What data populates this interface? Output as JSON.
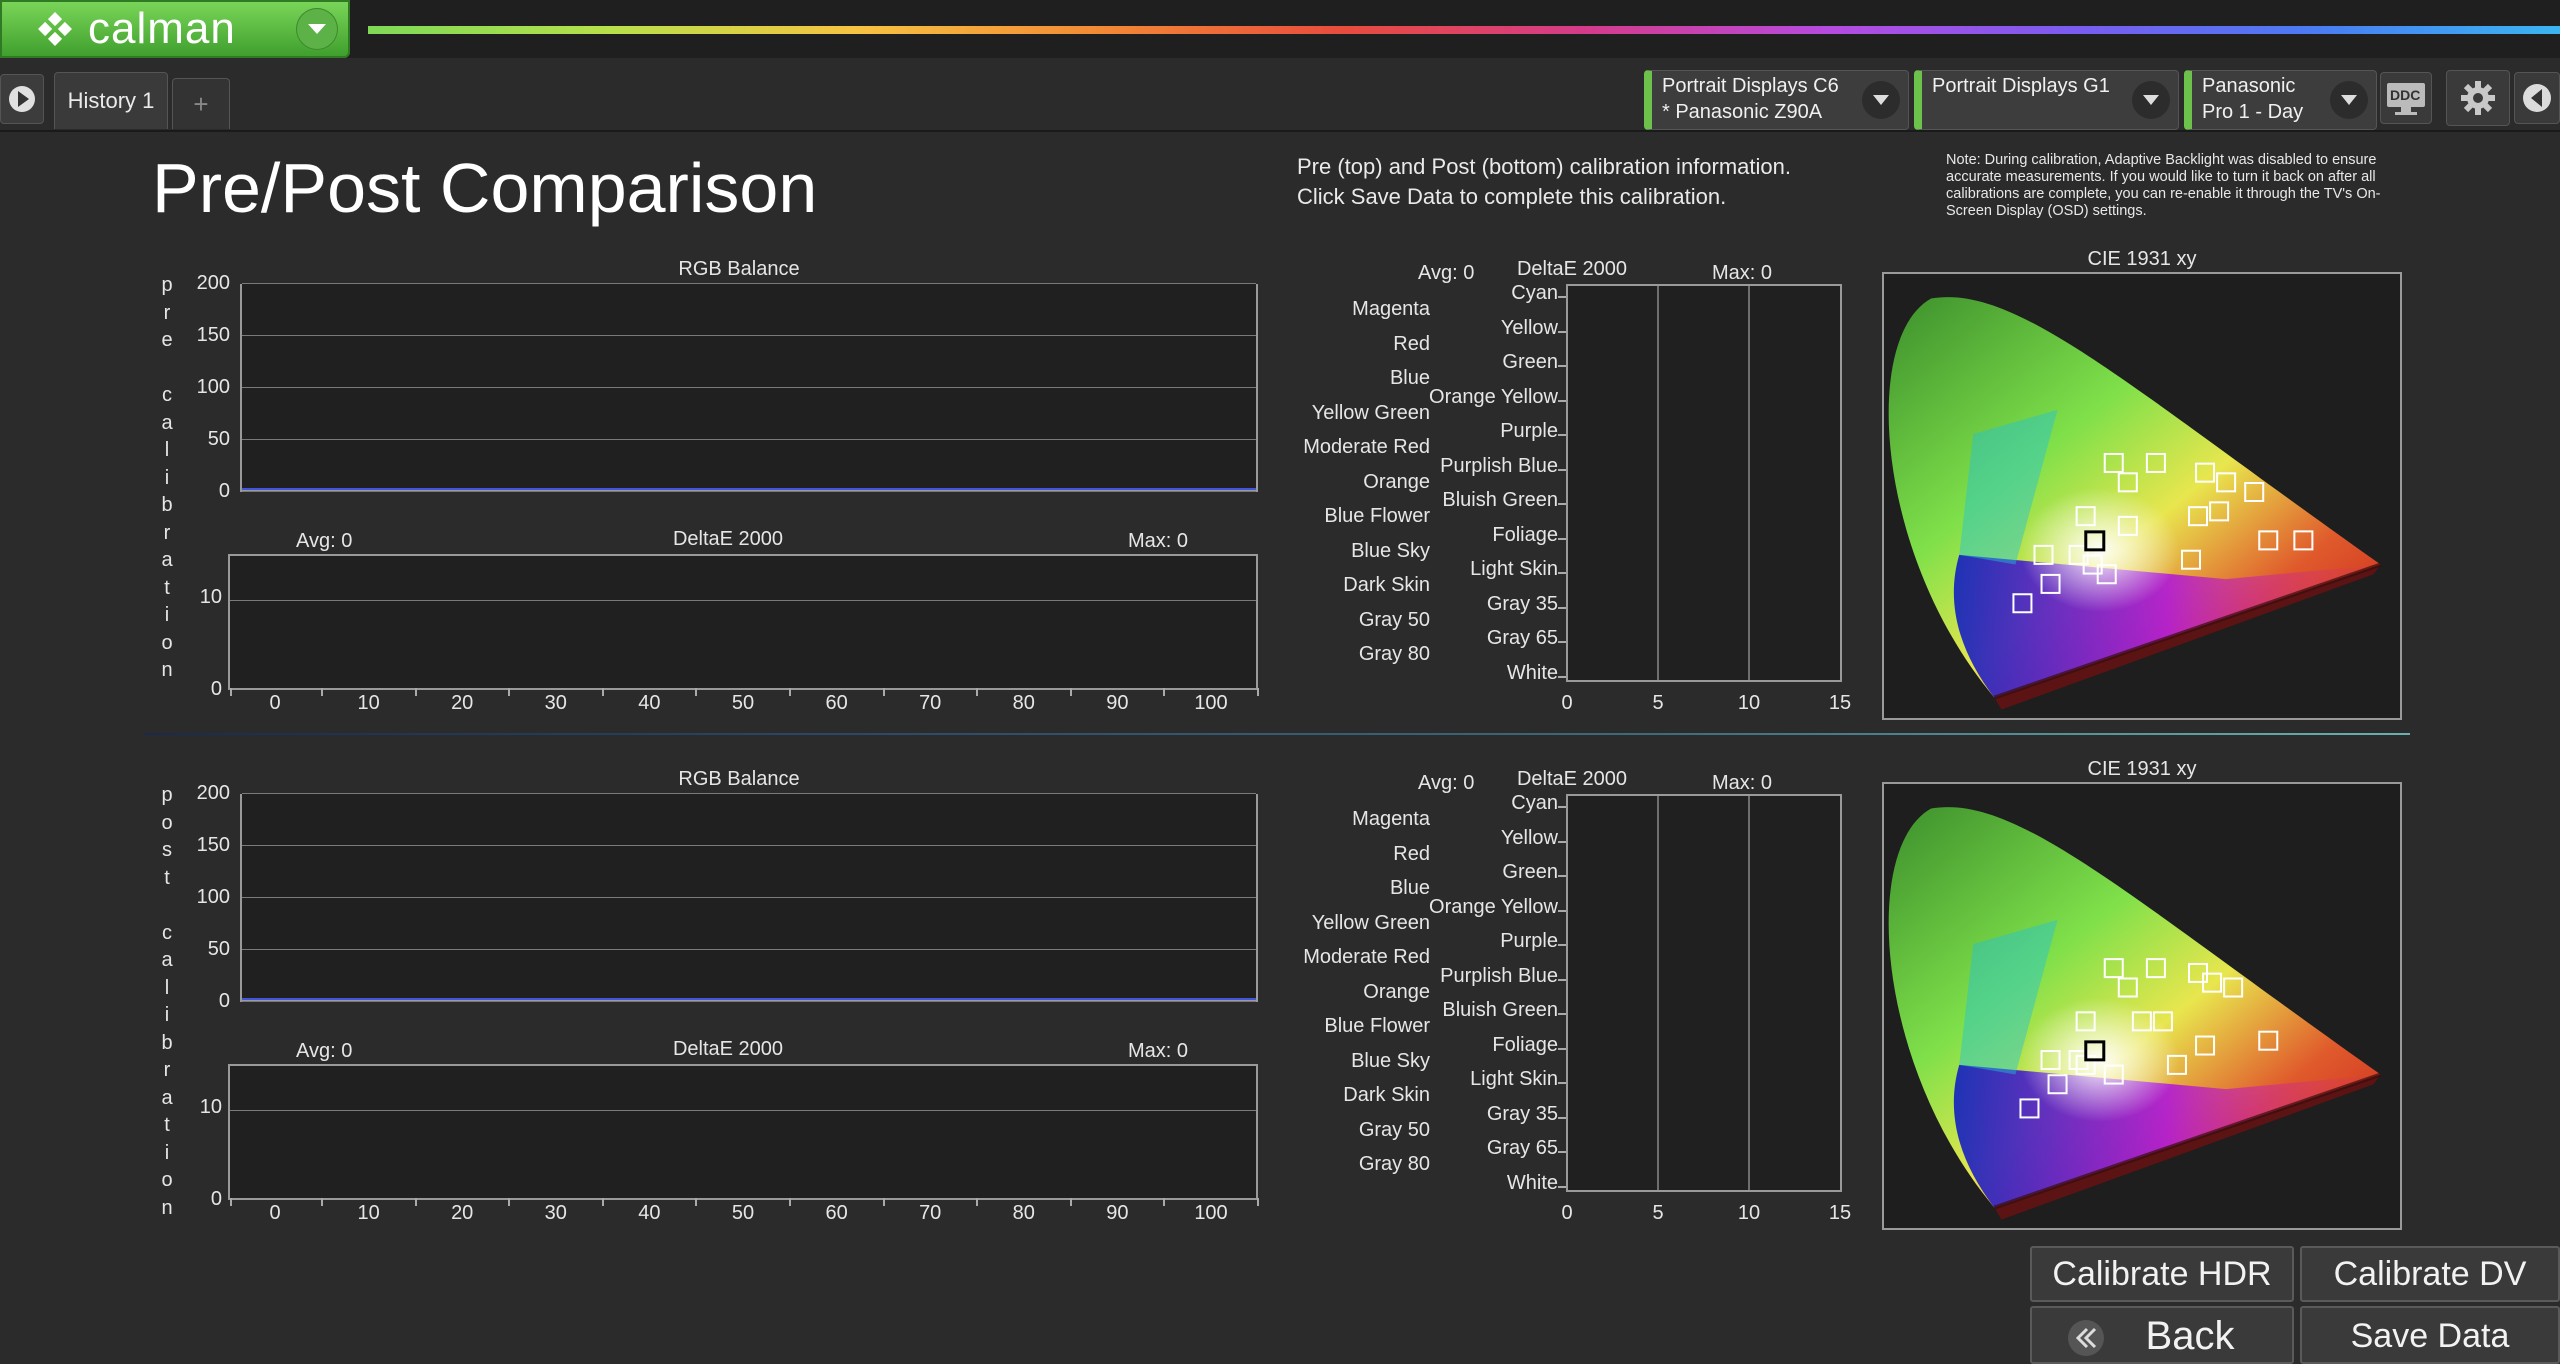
{
  "app": {
    "name": "calman"
  },
  "tabs": [
    {
      "label": "History 1"
    }
  ],
  "add_tab_label": "+",
  "devices": [
    {
      "line1": "Portrait Displays C6",
      "line2": "* Panasonic Z90A"
    },
    {
      "line1": "Portrait Displays G1",
      "line2": ""
    },
    {
      "line1": "Panasonic",
      "line2": "Pro 1 - Day"
    }
  ],
  "ddc_label": "DDC",
  "page": {
    "title": "Pre/Post Comparison",
    "info_line1": "Pre (top) and Post (bottom) calibration information.",
    "info_line2": "Click Save Data to complete this calibration.",
    "note": "Note: During calibration, Adaptive Backlight was disabled to ensure accurate measurements. If you would like to turn it back on after all calibrations are complete, you can re-enable it through the TV's On-Screen Display (OSD) settings."
  },
  "pre_label": "pre calibration",
  "post_label": "post calibration",
  "rgb_chart": {
    "title": "RGB Balance",
    "yticks": [
      "200",
      "150",
      "100",
      "50",
      "0"
    ]
  },
  "gray_delta_chart": {
    "title": "DeltaE 2000",
    "avg": "Avg: 0",
    "max": "Max: 0",
    "yticks": [
      "10",
      "0"
    ],
    "xticks": [
      "0",
      "10",
      "20",
      "30",
      "40",
      "50",
      "60",
      "70",
      "80",
      "90",
      "100"
    ]
  },
  "color_delta_chart": {
    "title": "DeltaE 2000",
    "avg": "Avg: 0",
    "max": "Max: 0",
    "xticks": [
      "0",
      "5",
      "10",
      "15"
    ],
    "left_labels": [
      "Magenta",
      "Red",
      "Blue",
      "Yellow Green",
      "Moderate Red",
      "Orange",
      "Blue Flower",
      "Blue Sky",
      "Dark Skin",
      "Gray 50",
      "Gray 80"
    ],
    "right_labels": [
      "Cyan",
      "Yellow",
      "Green",
      "Orange Yellow",
      "Purple",
      "Purplish Blue",
      "Bluish Green",
      "Foliage",
      "Light Skin",
      "Gray 35",
      "Gray 65",
      "White"
    ]
  },
  "cie_chart": {
    "title": "CIE 1931 xy"
  },
  "chart_data": [
    {
      "type": "line",
      "title": "RGB Balance",
      "panel": "pre",
      "ylim": [
        0,
        200
      ],
      "xlim": [
        0,
        100
      ],
      "series": [],
      "grid": true
    },
    {
      "type": "bar",
      "title": "DeltaE 2000",
      "panel": "pre-grayscale",
      "avg": 0,
      "max": 0,
      "xlim": [
        0,
        100
      ],
      "values": []
    },
    {
      "type": "bar",
      "title": "DeltaE 2000",
      "panel": "pre-colorchecker",
      "avg": 0,
      "max": 0,
      "xlim": [
        0,
        15
      ],
      "categories": [
        "Cyan",
        "Yellow",
        "Green",
        "Orange Yellow",
        "Purple",
        "Purplish Blue",
        "Bluish Green",
        "Foliage",
        "Light Skin",
        "Gray 35",
        "Gray 65",
        "White",
        "Magenta",
        "Red",
        "Blue",
        "Yellow Green",
        "Moderate Red",
        "Orange",
        "Blue Flower",
        "Blue Sky",
        "Dark Skin",
        "Gray 50",
        "Gray 80"
      ],
      "values": [
        0,
        0,
        0,
        0,
        0,
        0,
        0,
        0,
        0,
        0,
        0,
        0,
        0,
        0,
        0,
        0,
        0,
        0,
        0,
        0,
        0,
        0,
        0
      ]
    },
    {
      "type": "scatter",
      "title": "CIE 1931 xy",
      "panel": "pre",
      "targets": [
        [
          0.34,
          0.49
        ],
        [
          0.4,
          0.49
        ],
        [
          0.36,
          0.45
        ],
        [
          0.47,
          0.47
        ],
        [
          0.5,
          0.45
        ],
        [
          0.54,
          0.43
        ],
        [
          0.3,
          0.38
        ],
        [
          0.36,
          0.36
        ],
        [
          0.46,
          0.38
        ],
        [
          0.49,
          0.39
        ],
        [
          0.56,
          0.33
        ],
        [
          0.61,
          0.33
        ],
        [
          0.24,
          0.3
        ],
        [
          0.29,
          0.3
        ],
        [
          0.31,
          0.28
        ],
        [
          0.33,
          0.26
        ],
        [
          0.45,
          0.29
        ],
        [
          0.25,
          0.24
        ],
        [
          0.21,
          0.2
        ]
      ],
      "white": [
        0.313,
        0.329
      ]
    },
    {
      "type": "line",
      "title": "RGB Balance",
      "panel": "post",
      "ylim": [
        0,
        200
      ],
      "xlim": [
        0,
        100
      ],
      "series": [],
      "grid": true
    },
    {
      "type": "bar",
      "title": "DeltaE 2000",
      "panel": "post-grayscale",
      "avg": 0,
      "max": 0,
      "xlim": [
        0,
        100
      ],
      "values": []
    },
    {
      "type": "bar",
      "title": "DeltaE 2000",
      "panel": "post-colorchecker",
      "avg": 0,
      "max": 0,
      "xlim": [
        0,
        15
      ],
      "categories": [
        "Cyan",
        "Yellow",
        "Green",
        "Orange Yellow",
        "Purple",
        "Purplish Blue",
        "Bluish Green",
        "Foliage",
        "Light Skin",
        "Gray 35",
        "Gray 65",
        "White",
        "Magenta",
        "Red",
        "Blue",
        "Yellow Green",
        "Moderate Red",
        "Orange",
        "Blue Flower",
        "Blue Sky",
        "Dark Skin",
        "Gray 50",
        "Gray 80"
      ],
      "values": [
        0,
        0,
        0,
        0,
        0,
        0,
        0,
        0,
        0,
        0,
        0,
        0,
        0,
        0,
        0,
        0,
        0,
        0,
        0,
        0,
        0,
        0,
        0
      ]
    },
    {
      "type": "scatter",
      "title": "CIE 1931 xy",
      "panel": "post",
      "targets": [
        [
          0.34,
          0.5
        ],
        [
          0.4,
          0.5
        ],
        [
          0.36,
          0.46
        ],
        [
          0.46,
          0.49
        ],
        [
          0.48,
          0.47
        ],
        [
          0.51,
          0.46
        ],
        [
          0.3,
          0.39
        ],
        [
          0.38,
          0.39
        ],
        [
          0.41,
          0.39
        ],
        [
          0.47,
          0.34
        ],
        [
          0.56,
          0.35
        ],
        [
          0.25,
          0.31
        ],
        [
          0.29,
          0.31
        ],
        [
          0.3,
          0.3
        ],
        [
          0.34,
          0.28
        ],
        [
          0.43,
          0.3
        ],
        [
          0.26,
          0.26
        ],
        [
          0.22,
          0.21
        ]
      ],
      "white": [
        0.313,
        0.329
      ]
    }
  ],
  "buttons": {
    "calibrate_hdr": "Calibrate HDR",
    "calibrate_dv": "Calibrate DV",
    "back": "Back",
    "save_data": "Save Data"
  },
  "colors": {
    "accent_green": "#6cc24a",
    "background": "#2b2b2b"
  }
}
